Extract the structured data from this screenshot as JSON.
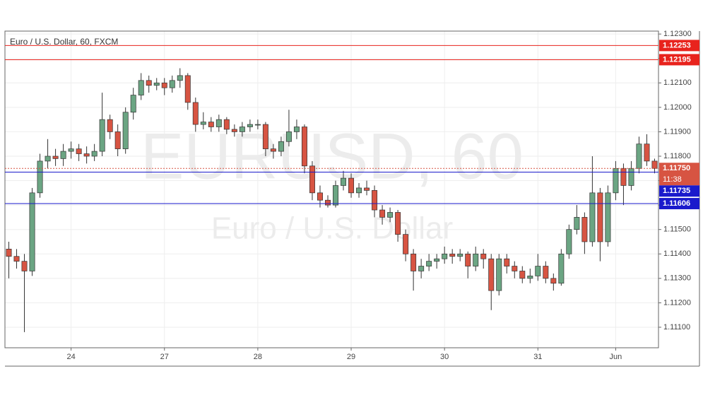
{
  "chart_data": {
    "type": "candlestick",
    "title": "Euro / U.S. Dollar, 60, FXCM",
    "watermark": "EURUSD, 60",
    "watermark_subtitle": "Euro / U.S. Dollar",
    "categories": [
      null,
      null,
      null,
      null,
      null,
      null,
      null,
      null,
      "24",
      null,
      null,
      null,
      null,
      null,
      null,
      null,
      null,
      null,
      null,
      null,
      "27",
      null,
      null,
      null,
      null,
      null,
      null,
      null,
      null,
      null,
      null,
      null,
      "28",
      null,
      null,
      null,
      null,
      null,
      null,
      null,
      null,
      null,
      null,
      null,
      "29",
      null,
      null,
      null,
      null,
      null,
      null,
      null,
      null,
      null,
      null,
      null,
      "30",
      null,
      null,
      null,
      null,
      null,
      null,
      null,
      null,
      null,
      null,
      null,
      "31",
      null,
      null,
      null,
      null,
      null,
      null,
      null,
      null,
      null,
      "Jun",
      null,
      null,
      null,
      null,
      null
    ],
    "open": [
      1.1142,
      1.1139,
      1.1137,
      1.1133,
      1.1165,
      1.1178,
      1.118,
      1.1179,
      1.1182,
      1.1183,
      1.1181,
      1.118,
      1.1182,
      1.1195,
      1.119,
      1.1183,
      1.1198,
      1.1205,
      1.1211,
      1.1209,
      1.121,
      1.1208,
      1.1211,
      1.1213,
      1.1202,
      1.1193,
      1.1194,
      1.1192,
      1.1195,
      1.1191,
      1.119,
      1.1192,
      1.1193,
      1.1193,
      1.1183,
      1.1182,
      1.1186,
      1.119,
      1.1192,
      1.1176,
      1.1165,
      1.1162,
      1.116,
      1.1168,
      1.1171,
      1.1165,
      1.1167,
      1.1166,
      1.1158,
      1.1155,
      1.1157,
      1.1148,
      1.114,
      1.1133,
      1.1135,
      1.1137,
      1.1138,
      1.114,
      1.1139,
      1.114,
      1.1135,
      1.114,
      1.1138,
      1.1125,
      1.1138,
      1.1135,
      1.1133,
      1.113,
      1.1131,
      1.1135,
      1.113,
      1.1128,
      1.114,
      1.115,
      1.1155,
      1.1145,
      1.1165,
      1.1145,
      1.1165,
      1.1175,
      1.1168,
      1.1175,
      1.1185,
      1.1178
    ],
    "high": [
      1.1145,
      1.1142,
      1.114,
      1.1167,
      1.1181,
      1.1187,
      1.1183,
      1.1185,
      1.1186,
      1.1185,
      1.1184,
      1.1185,
      1.1206,
      1.1197,
      1.1193,
      1.12,
      1.1208,
      1.1214,
      1.1213,
      1.1212,
      1.1212,
      1.1213,
      1.1216,
      1.1214,
      1.1204,
      1.1198,
      1.1196,
      1.1197,
      1.1196,
      1.1193,
      1.1194,
      1.1195,
      1.1195,
      1.1194,
      1.1185,
      1.1188,
      1.1199,
      1.1195,
      1.1193,
      1.1178,
      1.1168,
      1.1164,
      1.117,
      1.1174,
      1.1173,
      1.1169,
      1.117,
      1.1168,
      1.116,
      1.1159,
      1.1158,
      1.115,
      1.1142,
      1.1138,
      1.114,
      1.114,
      1.1143,
      1.1142,
      1.1142,
      1.1141,
      1.1143,
      1.1142,
      1.114,
      1.114,
      1.114,
      1.1137,
      1.1135,
      1.1134,
      1.114,
      1.1137,
      1.1132,
      1.1142,
      1.1152,
      1.116,
      1.1157,
      1.118,
      1.1167,
      1.1168,
      1.1178,
      1.1177,
      1.1178,
      1.1188,
      1.1189,
      1.1179
    ],
    "low": [
      1.113,
      1.1134,
      1.1108,
      1.1131,
      1.1163,
      1.1175,
      1.1176,
      1.1176,
      1.1179,
      1.1178,
      1.1177,
      1.1178,
      1.118,
      1.1187,
      1.118,
      1.1181,
      1.1195,
      1.1203,
      1.1206,
      1.1207,
      1.1205,
      1.1206,
      1.1208,
      1.1199,
      1.119,
      1.1191,
      1.119,
      1.119,
      1.1189,
      1.1188,
      1.1188,
      1.119,
      1.1191,
      1.118,
      1.1179,
      1.118,
      1.1184,
      1.1187,
      1.1173,
      1.1162,
      1.1159,
      1.1159,
      1.1159,
      1.1166,
      1.1163,
      1.1163,
      1.1164,
      1.1155,
      1.1152,
      1.1153,
      1.1145,
      1.1137,
      1.1125,
      1.113,
      1.1133,
      1.1134,
      1.1136,
      1.1136,
      1.1137,
      1.113,
      1.1133,
      1.1134,
      1.1117,
      1.1123,
      1.1132,
      1.113,
      1.1128,
      1.1128,
      1.1129,
      1.1128,
      1.1125,
      1.1127,
      1.1138,
      1.1148,
      1.114,
      1.1143,
      1.1137,
      1.1143,
      1.1162,
      1.116,
      1.1166,
      1.1173,
      1.1176,
      1.1173
    ],
    "close": [
      1.1139,
      1.1137,
      1.1133,
      1.1165,
      1.1178,
      1.118,
      1.1179,
      1.1182,
      1.1183,
      1.1181,
      1.118,
      1.1182,
      1.1195,
      1.119,
      1.1183,
      1.1198,
      1.1205,
      1.1211,
      1.1209,
      1.121,
      1.1208,
      1.1211,
      1.1213,
      1.1202,
      1.1193,
      1.1194,
      1.1192,
      1.1195,
      1.1191,
      1.119,
      1.1192,
      1.1193,
      1.1193,
      1.1183,
      1.1182,
      1.1186,
      1.119,
      1.1192,
      1.1176,
      1.1165,
      1.1162,
      1.116,
      1.1168,
      1.1171,
      1.1165,
      1.1167,
      1.1166,
      1.1158,
      1.1155,
      1.1157,
      1.1148,
      1.114,
      1.1133,
      1.1135,
      1.1137,
      1.1138,
      1.114,
      1.1139,
      1.114,
      1.1135,
      1.114,
      1.1138,
      1.1125,
      1.1138,
      1.1135,
      1.1133,
      1.113,
      1.1131,
      1.1135,
      1.113,
      1.1128,
      1.114,
      1.115,
      1.1155,
      1.1145,
      1.1165,
      1.1145,
      1.1165,
      1.1175,
      1.1168,
      1.1175,
      1.1185,
      1.1178,
      1.1175
    ],
    "up_color": "#6ba583",
    "down_color": "#d75442",
    "ylim": [
      1.11016,
      1.12312
    ],
    "yticks": [
      {
        "value": 1.111,
        "label": "1.11100"
      },
      {
        "value": 1.112,
        "label": "1.11200"
      },
      {
        "value": 1.113,
        "label": "1.11300"
      },
      {
        "value": 1.114,
        "label": "1.11400"
      },
      {
        "value": 1.115,
        "label": "1.11500"
      },
      {
        "value": 1.116,
        "label": "1.11600"
      },
      {
        "value": 1.117,
        "label": "1.11700"
      },
      {
        "value": 1.118,
        "label": "1.11800"
      },
      {
        "value": 1.119,
        "label": "1.11900"
      },
      {
        "value": 1.12,
        "label": "1.12000"
      },
      {
        "value": 1.121,
        "label": "1.12100"
      },
      {
        "value": 1.122,
        "label": "1.12200"
      },
      {
        "value": 1.123,
        "label": "1.12300"
      }
    ],
    "grid": true,
    "levels": [
      {
        "value": 1.12253,
        "color": "#e8231d",
        "style": "solid"
      },
      {
        "value": 1.12195,
        "color": "#e8231d",
        "style": "solid"
      },
      {
        "value": 1.1175,
        "label": "1.11750",
        "countdown": "11:38",
        "color": "#d75442",
        "style": "dotted"
      },
      {
        "value": 1.11735,
        "color": "#1a1acc",
        "style": "solid"
      },
      {
        "value": 1.11606,
        "color": "#1a1acc",
        "style": "solid"
      }
    ]
  }
}
